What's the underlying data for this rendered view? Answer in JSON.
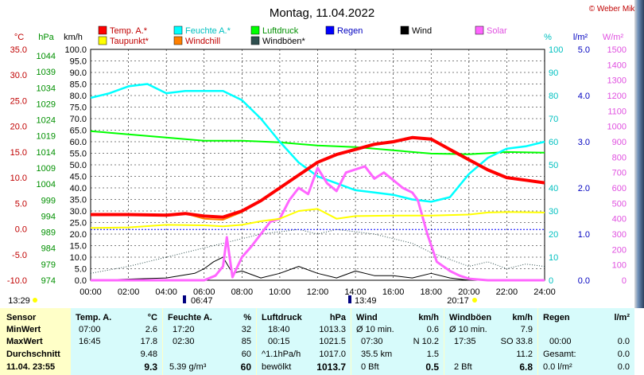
{
  "title": "Montag, 11.04.2022",
  "credit": "© Weber Mike",
  "colors": {
    "temp": "#ff0000",
    "taupunkt": "#ffff00",
    "feuchte": "#00ffff",
    "windchill": "#ff8000",
    "luftdruck": "#00ff00",
    "windboeen": "#2f4f4f",
    "regen": "#0000ff",
    "wind": "#000000",
    "solar": "#ff66ff",
    "grid": "#000000"
  },
  "axes": {
    "temp_unit": "°C",
    "hpa_unit": "hPa",
    "kmh_unit": "km/h",
    "pct_unit": "%",
    "rain_unit": "l/m²",
    "solar_unit": "W/m²",
    "temp_ticks": [
      "35.0",
      "30.0",
      "25.0",
      "20.0",
      "15.0",
      "10.0",
      "5.0",
      "0.0",
      "-5.0",
      "-10.0"
    ],
    "hpa_ticks": [
      "1044",
      "1039",
      "1034",
      "1029",
      "1024",
      "1019",
      "1014",
      "1009",
      "1004",
      "999",
      "994",
      "989",
      "984",
      "979",
      "974"
    ],
    "kmh_ticks": [
      "100.0",
      "95.0",
      "90.0",
      "85.0",
      "80.0",
      "75.0",
      "70.0",
      "65.0",
      "60.0",
      "55.0",
      "50.0",
      "45.0",
      "40.0",
      "35.0",
      "30.0",
      "25.0",
      "20.0",
      "15.0",
      "10.0",
      "5.0",
      "0.0"
    ],
    "pct_ticks": [
      "100",
      "90",
      "80",
      "70",
      "60",
      "50",
      "40",
      "30",
      "20",
      "10",
      "0"
    ],
    "rain_ticks": [
      "5.0",
      "4.0",
      "3.0",
      "2.0",
      "1.0",
      "0.0"
    ],
    "solar_ticks": [
      "1500",
      "1400",
      "1300",
      "1200",
      "1100",
      "1000",
      "900",
      "800",
      "700",
      "600",
      "500",
      "400",
      "300",
      "200",
      "100",
      "0"
    ],
    "time_ticks": [
      "00:00",
      "02:00",
      "04:00",
      "06:00",
      "08:00",
      "10:00",
      "12:00",
      "14:00",
      "16:00",
      "18:00",
      "20:00",
      "22:00",
      "24:00"
    ],
    "sunrise": "06:47",
    "sunset": "20:17",
    "moon_left": "13:29",
    "moon_mid": "13:49"
  },
  "legend": [
    {
      "key": "temp",
      "label": "Temp. A.*"
    },
    {
      "key": "feuchte",
      "label": "Feuchte A.*"
    },
    {
      "key": "luftdruck",
      "label": "Luftdruck"
    },
    {
      "key": "regen",
      "label": "Regen"
    },
    {
      "key": "wind",
      "label": "Wind"
    },
    {
      "key": "solar",
      "label": "Solar"
    },
    {
      "key": "taupunkt",
      "label": "Taupunkt*"
    },
    {
      "key": "windchill",
      "label": "Windchill"
    },
    {
      "key": "windboeen",
      "label": "Windböen*"
    }
  ],
  "chart_data": {
    "type": "line",
    "title": "Montag, 11.04.2022",
    "x_range": [
      "00:00",
      "24:00"
    ],
    "series": [
      {
        "name": "Temp. A.*",
        "unit": "°C",
        "x": [
          0,
          2,
          4,
          5,
          6,
          7,
          8,
          9,
          10,
          11,
          12,
          13,
          14,
          15,
          16,
          17,
          18,
          19,
          20,
          21,
          22,
          23,
          24
        ],
        "values": [
          2.8,
          2.8,
          2.7,
          3.0,
          2.5,
          2.3,
          3.5,
          5.5,
          8.0,
          10.5,
          13.0,
          14.5,
          15.5,
          16.5,
          17.0,
          17.8,
          17.5,
          15.5,
          13.5,
          11.5,
          10.0,
          9.5,
          9.0
        ]
      },
      {
        "name": "Taupunkt*",
        "unit": "°C",
        "x": [
          0,
          2,
          4,
          6,
          7,
          8,
          9,
          10,
          11,
          12,
          13,
          14,
          16,
          18,
          20,
          21,
          22,
          24
        ],
        "values": [
          0.2,
          0.3,
          0.8,
          0.7,
          0.5,
          0.8,
          1.5,
          2.0,
          3.5,
          3.9,
          2.0,
          2.5,
          2.6,
          2.6,
          2.8,
          3.2,
          3.3,
          3.2
        ]
      },
      {
        "name": "Windchill",
        "unit": "°C",
        "x": [
          0,
          2,
          4,
          5,
          6,
          7,
          8,
          9,
          10,
          11,
          12,
          13,
          14,
          15,
          16,
          17,
          18,
          19,
          20,
          21,
          22,
          23,
          24
        ],
        "values": [
          2.8,
          2.8,
          2.7,
          3.0,
          2.0,
          1.8,
          3.3,
          5.5,
          8.0,
          10.5,
          13.0,
          14.5,
          15.5,
          16.5,
          17.0,
          17.8,
          17.5,
          15.3,
          13.3,
          11.5,
          10.0,
          9.5,
          9.0
        ]
      },
      {
        "name": "Feuchte A.*",
        "unit": "%",
        "x": [
          0,
          1,
          2,
          3,
          4,
          5,
          6,
          7,
          8,
          9,
          10,
          11,
          12,
          13,
          14,
          15,
          16,
          17,
          18,
          19,
          20,
          21,
          22,
          23,
          24
        ],
        "values": [
          79,
          81,
          84,
          85,
          81,
          82,
          82,
          82,
          78,
          70,
          60,
          51,
          45,
          42,
          39,
          38,
          37,
          35,
          34,
          36,
          46,
          53,
          57,
          58,
          60
        ]
      },
      {
        "name": "Luftdruck",
        "unit": "hPa",
        "x": [
          0,
          1,
          2,
          4,
          6,
          8,
          10,
          12,
          14,
          16,
          18,
          20,
          22,
          24
        ],
        "values": [
          1020.5,
          1020,
          1019.5,
          1018.5,
          1017.5,
          1017.5,
          1017,
          1016,
          1015.5,
          1014.5,
          1013.5,
          1013.3,
          1014,
          1013.8
        ]
      },
      {
        "name": "Regen",
        "unit": "l/m²",
        "x": [
          0,
          24
        ],
        "values": [
          1.1,
          1.1
        ]
      },
      {
        "name": "Solar",
        "unit": "W/m²",
        "x": [
          0,
          6,
          6.6,
          7,
          7.2,
          7.5,
          8,
          8.5,
          9,
          9.5,
          10,
          10.5,
          11,
          11.5,
          12,
          12.5,
          13,
          13.5,
          14,
          14.5,
          15,
          15.5,
          16,
          16.5,
          17,
          17.3,
          17.8,
          18.3,
          19,
          19.5,
          20,
          21,
          24
        ],
        "values": [
          0,
          0,
          30,
          90,
          280,
          20,
          150,
          220,
          300,
          380,
          400,
          520,
          600,
          560,
          730,
          630,
          580,
          700,
          720,
          740,
          660,
          700,
          650,
          600,
          570,
          520,
          300,
          120,
          60,
          30,
          10,
          0,
          0
        ]
      },
      {
        "name": "Wind",
        "unit": "km/h",
        "x": [
          0,
          4,
          5.5,
          6,
          6.5,
          7,
          7.5,
          8,
          9,
          10,
          11,
          12,
          13,
          14,
          15,
          16,
          17,
          18,
          19,
          20,
          24
        ],
        "values": [
          0,
          1,
          3,
          5,
          8,
          10,
          3,
          4,
          1,
          3,
          6,
          3,
          1,
          4,
          2,
          2,
          1,
          3,
          1,
          0,
          0
        ]
      },
      {
        "name": "Windböen*",
        "unit": "km/h",
        "x": [
          0,
          2,
          4,
          5,
          6,
          7,
          8,
          9,
          10,
          11,
          12,
          13,
          14,
          15,
          16,
          17,
          18,
          19,
          20,
          21,
          22,
          23,
          24
        ],
        "values": [
          3,
          6,
          10,
          12,
          14,
          16,
          18,
          20,
          21,
          22,
          20,
          22,
          21,
          20,
          18,
          16,
          12,
          9,
          6,
          8,
          5,
          7,
          6
        ]
      }
    ]
  },
  "stats": {
    "sensor": {
      "header": "Sensor",
      "min": "MinWert",
      "max": "MaxWert",
      "avg": "Durchschnitt",
      "now": "11.04. 23:55"
    },
    "temp": {
      "header": "Temp. A.",
      "unit": "°C",
      "min_time": "07:00",
      "min_val": "2.6",
      "max_time": "16:45",
      "max_val": "17.8",
      "avg": "9.48",
      "now": "9.3"
    },
    "feuchte": {
      "header": "Feuchte A.",
      "unit": "%",
      "min_time": "17:20",
      "min_val": "32",
      "max_time": "02:30",
      "max_val": "85",
      "avg": "60",
      "abs": "5.39 g/m³",
      "now": "60"
    },
    "luftdruck": {
      "header": "Luftdruck",
      "unit": "hPa",
      "min_time": "18:40",
      "min_val": "1013.3",
      "max_time": "00:15",
      "max_val": "1021.5",
      "trend": "^1.1hPa/h",
      "avg": "1017.0",
      "cond": "bewölkt",
      "now": "1013.7"
    },
    "wind": {
      "header": "Wind",
      "unit": "km/h",
      "min_label": "Ø 10 min.",
      "min_val": "0.6",
      "max_time": "07:30",
      "max_dir": "N 10.2",
      "dist": "35.5 km",
      "avg": "1.5",
      "bft": "0 Bft",
      "now": "0.5"
    },
    "boeen": {
      "header": "Windböen",
      "unit": "km/h",
      "min_label": "Ø 10 min.",
      "min_val": "7.9",
      "max_time": "17:35",
      "max_dir": "SO 33.8",
      "avg": "11.2",
      "bft": "2 Bft",
      "now": "6.8"
    },
    "regen": {
      "header": "Regen",
      "unit": "l/m²",
      "max_time": "00:00",
      "max_val": "0.0",
      "total_label": "Gesamt:",
      "total_val": "0.0",
      "now": "0.0 l/m²",
      "now2": "0.0"
    }
  }
}
